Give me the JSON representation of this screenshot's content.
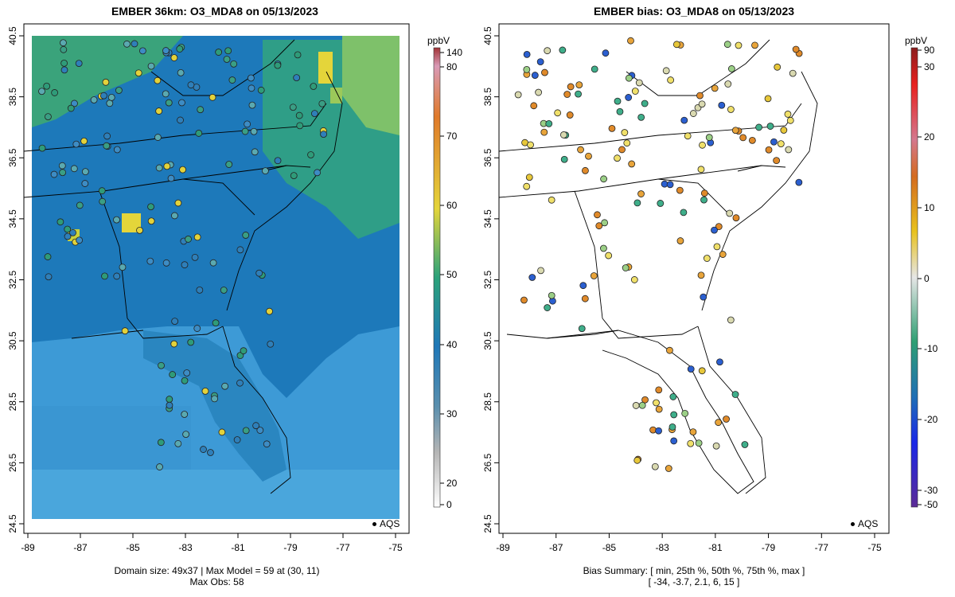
{
  "left_panel": {
    "title": "EMBER 36km: O3_MDA8 on 05/13/2023",
    "caption_line1": "Domain size: 49x37 | Max Model = 59 at (30, 11)",
    "caption_line2": "Max Obs: 58",
    "colorbar_unit": "ppbV",
    "colorbar_ticks": [
      "140",
      "80",
      "70",
      "60",
      "50",
      "40",
      "30",
      "20",
      "0"
    ],
    "legend": "AQS"
  },
  "right_panel": {
    "title": "EMBER bias: O3_MDA8 on 05/13/2023",
    "caption_line1": "Bias Summary: [ min, 25th %, 50th %, 75th %, max ]",
    "caption_line2": "[ -34,   -3.7,   2.1,   6,   15 ]",
    "colorbar_unit": "ppbV",
    "colorbar_ticks": [
      "90",
      "30",
      "20",
      "10",
      "0",
      "-10",
      "-20",
      "-30",
      "-50"
    ],
    "legend": "AQS"
  },
  "axes": {
    "lon_ticks": [
      "-89",
      "-87",
      "-85",
      "-83",
      "-81",
      "-79",
      "-77",
      "-75"
    ],
    "lat_ticks": [
      "40.5",
      "38.5",
      "36.5",
      "34.5",
      "32.5",
      "30.5",
      "28.5",
      "26.5",
      "24.5"
    ]
  },
  "colors": {
    "ocean": "#3d9ad6",
    "land_low": "#1f78b8",
    "land_mid": "#2ca37a",
    "land_high": "#e4d53a",
    "bias_warm": "#e8a43a",
    "bias_cold": "#3fae8a"
  }
}
